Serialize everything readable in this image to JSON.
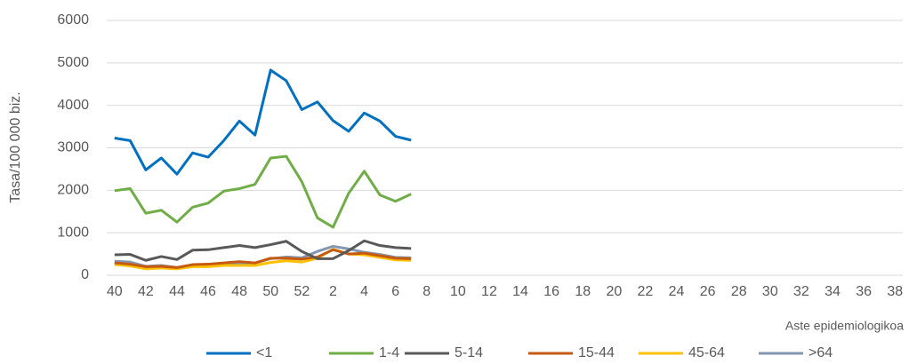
{
  "chart_data": {
    "type": "line",
    "ylabel": "Tasa/100 000 biz.",
    "xlabel": "Aste epidemiologikoa",
    "categories": [
      "40",
      null,
      "42",
      null,
      "44",
      null,
      "46",
      null,
      "48",
      null,
      "50",
      null,
      "52",
      null,
      "2",
      null,
      "4",
      null,
      "6",
      null,
      "8",
      null,
      "10",
      null,
      "12",
      null,
      "14",
      null,
      "16",
      null,
      "18",
      null,
      "20",
      null,
      "22",
      null,
      "24",
      null,
      "26",
      null,
      "28",
      null,
      "30",
      null,
      "32",
      null,
      "34",
      null,
      "36",
      null,
      "38"
    ],
    "ylim": [
      0,
      6000
    ],
    "yticks": [
      0,
      1000,
      2000,
      3000,
      4000,
      5000,
      6000
    ],
    "grid": true,
    "legend": "bottom",
    "series": [
      {
        "name": "<1",
        "color": "#0070c0",
        "values": [
          3230,
          3170,
          2480,
          2760,
          2380,
          2880,
          2780,
          3170,
          3630,
          3300,
          4830,
          4580,
          3900,
          4080,
          3640,
          3390,
          3820,
          3630,
          3270,
          3180,
          null,
          null,
          null,
          null,
          null,
          null,
          null,
          null,
          null,
          null,
          null,
          null,
          null,
          null,
          null,
          null,
          null,
          null,
          null,
          null,
          null,
          null,
          null,
          null,
          null,
          null,
          null,
          null,
          null,
          null,
          null
        ]
      },
      {
        "name": "1-4",
        "color": "#70ad47",
        "values": [
          1990,
          2040,
          1460,
          1530,
          1250,
          1600,
          1700,
          1980,
          2040,
          2140,
          2760,
          2800,
          2200,
          1350,
          1130,
          1930,
          2450,
          1890,
          1740,
          1910,
          null,
          null,
          null,
          null,
          null,
          null,
          null,
          null,
          null,
          null,
          null,
          null,
          null,
          null,
          null,
          null,
          null,
          null,
          null,
          null,
          null,
          null,
          null,
          null,
          null,
          null,
          null,
          null,
          null,
          null,
          null
        ]
      },
      {
        "name": "5-14",
        "color": "#595959",
        "values": [
          480,
          490,
          350,
          440,
          370,
          590,
          600,
          650,
          700,
          650,
          720,
          800,
          560,
          390,
          390,
          580,
          810,
          700,
          650,
          630,
          null,
          null,
          null,
          null,
          null,
          null,
          null,
          null,
          null,
          null,
          null,
          null,
          null,
          null,
          null,
          null,
          null,
          null,
          null,
          null,
          null,
          null,
          null,
          null,
          null,
          null,
          null,
          null,
          null,
          null,
          null
        ]
      },
      {
        "name": "15-44",
        "color": "#c55a11",
        "values": [
          290,
          260,
          200,
          210,
          180,
          250,
          260,
          290,
          320,
          290,
          400,
          400,
          380,
          430,
          600,
          500,
          520,
          460,
          400,
          390,
          null,
          null,
          null,
          null,
          null,
          null,
          null,
          null,
          null,
          null,
          null,
          null,
          null,
          null,
          null,
          null,
          null,
          null,
          null,
          null,
          null,
          null,
          null,
          null,
          null,
          null,
          null,
          null,
          null,
          null,
          null
        ]
      },
      {
        "name": "45-64",
        "color": "#ffc000",
        "values": [
          250,
          220,
          150,
          170,
          150,
          200,
          200,
          230,
          230,
          230,
          300,
          340,
          310,
          400,
          610,
          500,
          480,
          420,
          360,
          350,
          null,
          null,
          null,
          null,
          null,
          null,
          null,
          null,
          null,
          null,
          null,
          null,
          null,
          null,
          null,
          null,
          null,
          null,
          null,
          null,
          null,
          null,
          null,
          null,
          null,
          null,
          null,
          null,
          null,
          null,
          null
        ]
      },
      {
        "name": ">64",
        "color": "#8497b0",
        "values": [
          330,
          310,
          210,
          230,
          180,
          240,
          250,
          250,
          260,
          290,
          390,
          430,
          410,
          560,
          680,
          620,
          540,
          490,
          420,
          410,
          null,
          null,
          null,
          null,
          null,
          null,
          null,
          null,
          null,
          null,
          null,
          null,
          null,
          null,
          null,
          null,
          null,
          null,
          null,
          null,
          null,
          null,
          null,
          null,
          null,
          null,
          null,
          null,
          null,
          null,
          null
        ]
      }
    ]
  }
}
